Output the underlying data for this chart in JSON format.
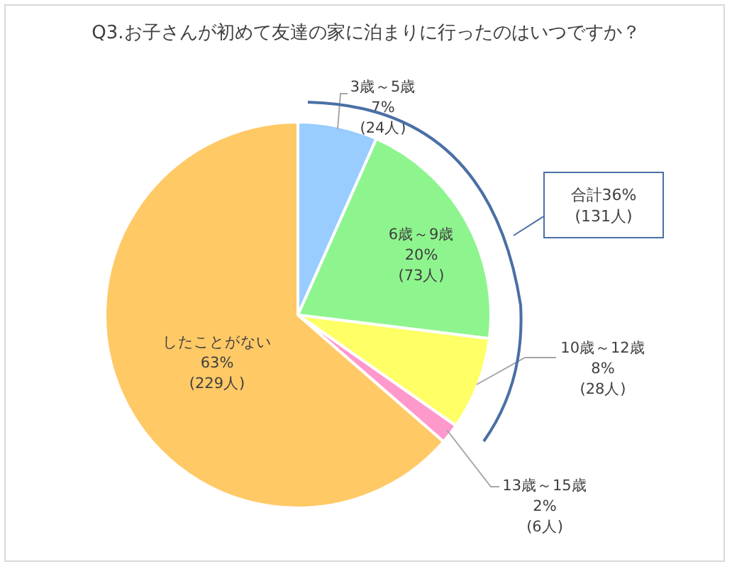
{
  "chart_data": {
    "type": "pie",
    "title": "Q3.お子さんが初めて友達の家に泊まりに行ったのはいつですか？",
    "categories": [
      "3歳～5歳",
      "6歳～9歳",
      "10歳～12歳",
      "13歳～15歳",
      "したことがない"
    ],
    "values": [
      24,
      73,
      28,
      6,
      229
    ],
    "colors": [
      "#99ccff",
      "#8ef58e",
      "#ffff66",
      "#ff99cc",
      "#ffc966"
    ],
    "value_labels": [
      "7%\n(24人)",
      "20%\n(73人)",
      "8%\n(28人)",
      "2%\n(6人)",
      "63%\n(229人)"
    ],
    "annotations": [
      "合計36%\n(131人)"
    ]
  }
}
